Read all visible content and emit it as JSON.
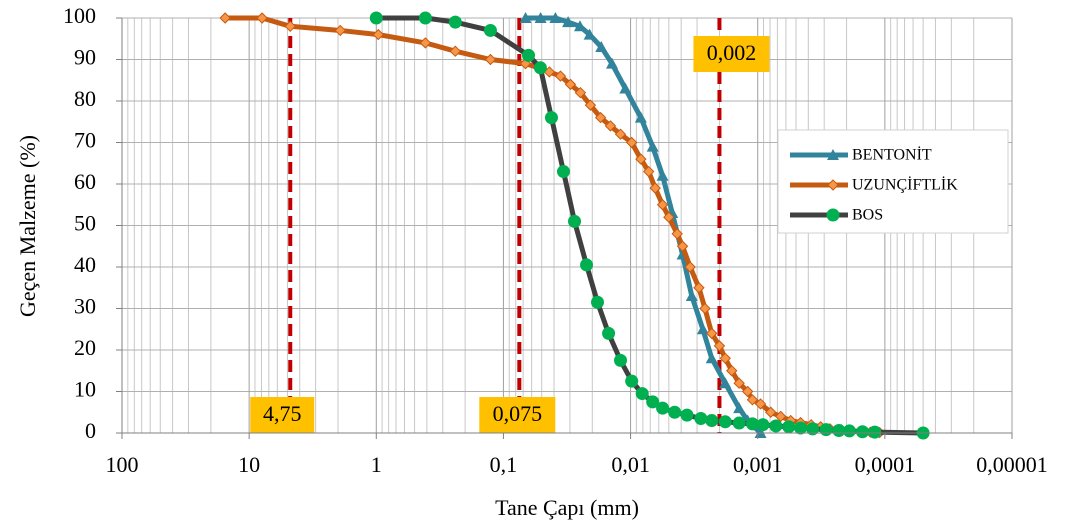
{
  "chart_data": {
    "type": "line",
    "x_label": "Tane Çapı (mm)",
    "y_label": "Geçen Malzeme (%)",
    "log_x": true,
    "grid": true,
    "legend": "right",
    "xlim": [
      100,
      1e-05
    ],
    "xticks": [
      100,
      10,
      1,
      {
        "value": 0.1,
        "label": "0,1"
      },
      {
        "value": 0.01,
        "label": "0,01"
      },
      {
        "value": 0.001,
        "label": "0,001"
      },
      {
        "value": 0.0001,
        "label": "0,0001"
      },
      {
        "value": 1e-05,
        "label": "0,00001"
      }
    ],
    "ylim": [
      0,
      100
    ],
    "yticks": [
      0,
      10,
      20,
      30,
      40,
      50,
      60,
      70,
      80,
      90,
      100
    ],
    "reference_lines": [
      {
        "value": 4.75,
        "label": "4,75",
        "color": "#c00000"
      },
      {
        "value": 0.075,
        "label": "0,075",
        "color": "#c00000"
      },
      {
        "value": 0.002,
        "label": "0,002",
        "color": "#c00000"
      }
    ],
    "series": [
      {
        "name": "BENTONİT",
        "color": "#31849b",
        "marker": "triangle",
        "marker_color": "#31849b",
        "x": [
          0.067,
          0.051,
          0.039,
          0.031,
          0.025,
          0.021,
          0.017,
          0.014,
          0.011,
          0.0083,
          0.0067,
          0.0056,
          0.0047,
          0.0039,
          0.0033,
          0.0027,
          0.0023,
          0.0018,
          0.0014,
          0.0012,
          0.00095
        ],
        "values": [
          100,
          100,
          100,
          99,
          98,
          96,
          93,
          89,
          83,
          76,
          69,
          62,
          53,
          43,
          33,
          25,
          18,
          12,
          6,
          3,
          0
        ]
      },
      {
        "name": "UZUNÇİFTLİK",
        "color": "#c55a11",
        "marker": "diamond",
        "marker_color": "#f79646",
        "x": [
          15.45,
          7.91,
          4.75,
          1.92,
          0.964,
          0.411,
          0.239,
          0.1265,
          0.0671,
          0.053,
          0.0435,
          0.0356,
          0.0297,
          0.0248,
          0.0207,
          0.0172,
          0.0144,
          0.012,
          0.0098,
          0.0083,
          0.0072,
          0.0064,
          0.0056,
          0.005,
          0.0043,
          0.0039,
          0.0034,
          0.0029,
          0.0026,
          0.0023,
          0.002,
          0.0018,
          0.0016,
          0.0014,
          0.0012,
          0.0011,
          0.00095,
          0.00079,
          0.00066,
          0.00055,
          0.00046,
          0.00038,
          0.00032,
          0.00027,
          0.00022,
          0.00019,
          0.00015,
          0.00013,
          0.00011
        ],
        "values": [
          100,
          100,
          98,
          97,
          96,
          94,
          92,
          90,
          89,
          88,
          87,
          86,
          84,
          82,
          79,
          76,
          74,
          72,
          70,
          66,
          63,
          59,
          55,
          52,
          48,
          45,
          40,
          35,
          30,
          24,
          21,
          18,
          15,
          12,
          10,
          8,
          7,
          5,
          4,
          3,
          2.5,
          2,
          1.5,
          1,
          0.8,
          0.5,
          0.3,
          0.2,
          0.1
        ]
      },
      {
        "name": "BOS",
        "color": "#404040",
        "marker": "circle",
        "marker_color": "#00b050",
        "x": [
          1,
          0.411,
          0.239,
          0.1265,
          0.0635,
          0.0512,
          0.0419,
          0.0337,
          0.0276,
          0.0222,
          0.0182,
          0.0149,
          0.012,
          0.0098,
          0.0081,
          0.0067,
          0.0056,
          0.0045,
          0.0036,
          0.0028,
          0.0023,
          0.0018,
          0.0014,
          0.0011,
          0.00091,
          0.00072,
          0.00057,
          0.00046,
          0.00037,
          0.00029,
          0.00023,
          0.00019,
          0.00015,
          0.00012,
          5e-05
        ],
        "values": [
          100,
          100,
          99,
          97,
          91,
          88,
          76,
          63,
          51,
          40.5,
          31.5,
          24,
          17.5,
          12.5,
          9.5,
          7.5,
          6,
          5,
          4.3,
          3.5,
          3,
          2.7,
          2.4,
          2.2,
          2,
          1.7,
          1.5,
          1.2,
          1,
          0.8,
          0.6,
          0.5,
          0.3,
          0.2,
          0
        ]
      }
    ]
  }
}
